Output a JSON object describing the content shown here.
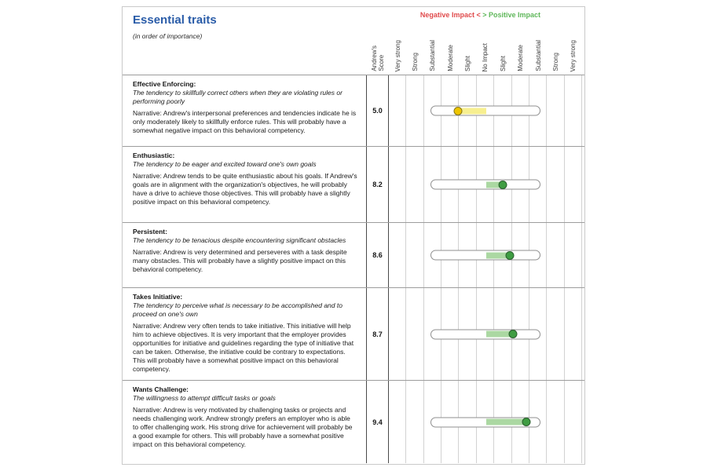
{
  "header": {
    "title": "Essential traits",
    "subtitle": "(in order of importance)",
    "legend": {
      "negative": "Negative Impact <",
      "positive": "> Positive Impact"
    },
    "score_column_label": "Andrew's\nScore",
    "impact_columns": [
      "Very strong",
      "Strong",
      "Substantial",
      "Moderate",
      "Slight",
      "No Impact",
      "Slight",
      "Moderate",
      "Substantial",
      "Strong",
      "Very strong"
    ]
  },
  "colors": {
    "title_blue": "#2a5ca8",
    "legend_negative_red": "#e04b4c",
    "legend_positive_green": "#5fb75a",
    "negative_segment_fill": "#f7ef90",
    "negative_dot_fill": "#eec500",
    "negative_dot_border": "#85761c",
    "positive_segment_fill": "#abd8a2",
    "positive_dot_fill": "#3f9d42",
    "positive_dot_border": "#2a5f2d"
  },
  "traits": [
    {
      "name": "Effective Enforcing:",
      "description": "The tendency to skillfully correct others when they are violating rules or performing poorly",
      "narrative": "Narrative: Andrew's interpersonal preferences and tendencies indicate he is only moderately likely to skillfully enforce rules. This will probably have a somewhat negative impact on this behavioral competency.",
      "score": "5.0",
      "impact_position": -1.6,
      "impact_direction": "negative"
    },
    {
      "name": "Enthusiastic:",
      "description": "The tendency to be eager and excited toward one's own goals",
      "narrative": "Narrative: Andrew tends to be quite enthusiastic about his goals. If Andrew's goals are in alignment with the organization's objectives, he will probably have a drive to achieve those objectives. This will probably have a slightly positive impact on this behavioral competency.",
      "score": "8.2",
      "impact_position": 0.95,
      "impact_direction": "positive"
    },
    {
      "name": "Persistent:",
      "description": "The tendency to be tenacious despite encountering significant obstacles",
      "narrative": "Narrative: Andrew is very determined and perseveres with a task despite many obstacles. This will probably have a slightly positive impact on this behavioral competency.",
      "score": "8.6",
      "impact_position": 1.35,
      "impact_direction": "positive"
    },
    {
      "name": "Takes Initiative:",
      "description": "The tendency to perceive what is necessary to be accomplished and to proceed on one's own",
      "narrative": "Narrative: Andrew very often tends to take initiative. This initiative will help him to achieve objectives. It is very important that the employer provides opportunities for initiative and guidelines regarding the type of initiative that can be taken. Otherwise, the initiative could be contrary to expectations. This will probably have a somewhat positive impact on this behavioral competency.",
      "score": "8.7",
      "impact_position": 1.5,
      "impact_direction": "positive"
    },
    {
      "name": "Wants Challenge:",
      "description": "The willingness to attempt difficult tasks or goals",
      "narrative": "Narrative: Andrew is very motivated by challenging tasks or projects and needs challenging work. Andrew strongly prefers an employer who is able to offer challenging work. His strong drive for achievement will probably be a good example for others. This will probably have a somewhat positive impact on this behavioral competency.",
      "score": "9.4",
      "impact_position": 2.3,
      "impact_direction": "positive"
    }
  ]
}
